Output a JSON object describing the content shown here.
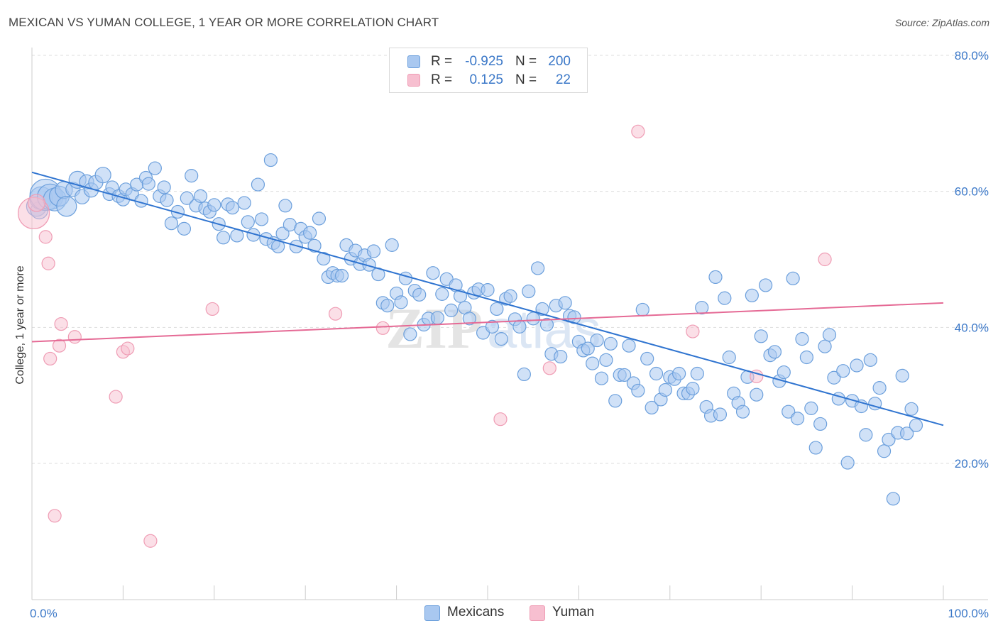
{
  "header": {
    "title": "MEXICAN VS YUMAN COLLEGE, 1 YEAR OR MORE CORRELATION CHART",
    "source": "Source: ZipAtlas.com"
  },
  "watermark": "ZIPatlas",
  "legend": {
    "rows": [
      {
        "r_label": "R =",
        "r_value": "-0.925",
        "n_label": "N =",
        "n_value": "200"
      },
      {
        "r_label": "R =",
        "r_value": "0.125",
        "n_label": "N =",
        "n_value": "22"
      }
    ]
  },
  "bottom_legend": {
    "items": [
      {
        "label": "Mexicans"
      },
      {
        "label": "Yuman"
      }
    ]
  },
  "colors": {
    "blue_fill": "#a9c8f0",
    "blue_stroke": "#6b9fdc",
    "blue_line": "#2f74d0",
    "pink_fill": "#f7bfd0",
    "pink_stroke": "#ef9cb4",
    "pink_line": "#e56a95",
    "tick_text": "#3b78c8",
    "grid": "#dddddd"
  },
  "chart_data": {
    "type": "scatter",
    "title": "MEXICAN VS YUMAN COLLEGE, 1 YEAR OR MORE CORRELATION CHART",
    "xlabel": "",
    "ylabel": "College, 1 year or more",
    "xlim": [
      0,
      100
    ],
    "ylim": [
      0,
      82
    ],
    "x_ticks": [
      "0.0%",
      "100.0%"
    ],
    "y_ticks": [
      {
        "value": 20,
        "label": "20.0%"
      },
      {
        "value": 40,
        "label": "40.0%"
      },
      {
        "value": 60,
        "label": "60.0%"
      },
      {
        "value": 80,
        "label": "80.0%"
      }
    ],
    "grid": "horizontal dashed",
    "legend_position": "top-center",
    "series": [
      {
        "name": "Mexicans",
        "r": -0.925,
        "n": 200,
        "trend": {
          "x0": 0,
          "y0": 62.8,
          "x1": 100,
          "y1": 25.6
        },
        "points": [
          [
            0.5,
            57.8,
            14
          ],
          [
            0.8,
            57.2,
            12
          ],
          [
            1,
            59,
            16
          ],
          [
            1.5,
            59.5,
            22
          ],
          [
            2,
            59.2,
            18
          ],
          [
            2.5,
            58.8,
            16
          ],
          [
            3,
            59.3,
            14
          ],
          [
            3.5,
            60.2,
            12
          ],
          [
            3.8,
            57.8,
            14
          ],
          [
            4.5,
            60.3,
            10
          ],
          [
            5,
            61.7,
            12
          ],
          [
            5.5,
            59.2,
            10
          ],
          [
            6,
            61.4,
            10
          ],
          [
            6.5,
            60.2,
            10
          ],
          [
            7,
            61.3,
            10
          ],
          [
            7.8,
            62.4,
            11
          ],
          [
            8.5,
            59.6,
            9
          ],
          [
            8.8,
            60.6,
            9
          ],
          [
            9.5,
            59.3,
            9
          ],
          [
            10,
            58.8,
            9
          ],
          [
            10.3,
            60.3,
            9
          ],
          [
            11,
            59.6,
            9
          ],
          [
            11.5,
            61,
            9
          ],
          [
            12,
            58.6,
            9
          ],
          [
            12.5,
            62,
            9
          ],
          [
            12.8,
            61.1,
            9
          ],
          [
            13.5,
            63.4,
            9
          ],
          [
            14,
            59.3,
            9
          ],
          [
            14.5,
            60.6,
            9
          ],
          [
            14.8,
            58.7,
            9
          ],
          [
            15.3,
            55.3,
            9
          ],
          [
            16,
            57,
            9
          ],
          [
            16.7,
            54.5,
            9
          ],
          [
            17,
            59,
            9
          ],
          [
            17.5,
            62.3,
            9
          ],
          [
            18,
            57.9,
            9
          ],
          [
            18.5,
            59.3,
            9
          ],
          [
            19,
            57.5,
            9
          ],
          [
            19.5,
            57,
            9
          ],
          [
            20,
            58,
            9
          ],
          [
            20.5,
            55.2,
            9
          ],
          [
            21,
            53.2,
            9
          ],
          [
            21.5,
            58.1,
            9
          ],
          [
            22,
            57.6,
            9
          ],
          [
            22.5,
            53.5,
            9
          ],
          [
            23.3,
            58.3,
            9
          ],
          [
            23.7,
            55.5,
            9
          ],
          [
            24.3,
            53.6,
            9
          ],
          [
            24.8,
            61,
            9
          ],
          [
            25.2,
            55.9,
            9
          ],
          [
            25.7,
            53,
            9
          ],
          [
            26.2,
            64.6,
            9
          ],
          [
            26.5,
            52.4,
            9
          ],
          [
            27,
            51.9,
            9
          ],
          [
            27.5,
            53.8,
            9
          ],
          [
            27.8,
            57.9,
            9
          ],
          [
            28.3,
            55.1,
            9
          ],
          [
            29,
            51.9,
            9
          ],
          [
            29.5,
            54.5,
            9
          ],
          [
            30,
            53.3,
            9
          ],
          [
            30.5,
            53.9,
            9
          ],
          [
            31,
            52,
            9
          ],
          [
            31.5,
            56,
            9
          ],
          [
            32,
            50.1,
            9
          ],
          [
            32.5,
            47.4,
            9
          ],
          [
            33,
            48,
            9
          ],
          [
            33.5,
            47.6,
            9
          ],
          [
            34,
            47.6,
            9
          ],
          [
            34.5,
            52.1,
            9
          ],
          [
            35,
            50.1,
            9
          ],
          [
            35.5,
            51.3,
            9
          ],
          [
            36,
            49.3,
            9
          ],
          [
            36.5,
            50.6,
            9
          ],
          [
            37,
            49.2,
            9
          ],
          [
            37.5,
            51.2,
            9
          ],
          [
            38,
            47.8,
            9
          ],
          [
            38.5,
            43.6,
            9
          ],
          [
            39,
            43.2,
            9
          ],
          [
            39.5,
            52.1,
            9
          ],
          [
            40,
            45,
            9
          ],
          [
            40.5,
            43.7,
            9
          ],
          [
            41,
            47.2,
            9
          ],
          [
            41.5,
            39,
            9
          ],
          [
            42,
            45.4,
            9
          ],
          [
            42.5,
            44.8,
            9
          ],
          [
            43,
            40.4,
            9
          ],
          [
            43.5,
            41.3,
            9
          ],
          [
            44,
            48,
            9
          ],
          [
            44.5,
            41.4,
            9
          ],
          [
            45,
            44.9,
            9
          ],
          [
            45.5,
            47.1,
            9
          ],
          [
            46,
            42.5,
            9
          ],
          [
            46.5,
            46.2,
            9
          ],
          [
            47,
            44.6,
            9
          ],
          [
            47.5,
            42.9,
            9
          ],
          [
            48,
            41.3,
            9
          ],
          [
            48.5,
            45.1,
            9
          ],
          [
            49,
            45.6,
            9
          ],
          [
            49.5,
            39.2,
            9
          ],
          [
            50,
            45.5,
            9
          ],
          [
            50.5,
            40.1,
            9
          ],
          [
            51,
            42.7,
            9
          ],
          [
            51.5,
            38.3,
            9
          ],
          [
            52,
            44.2,
            9
          ],
          [
            52.5,
            44.6,
            9
          ],
          [
            53,
            41.2,
            9
          ],
          [
            53.5,
            40.1,
            9
          ],
          [
            54,
            33.1,
            9
          ],
          [
            54.5,
            45.3,
            9
          ],
          [
            55,
            41.3,
            9
          ],
          [
            55.5,
            48.7,
            9
          ],
          [
            56,
            42.7,
            9
          ],
          [
            56.5,
            40.4,
            9
          ],
          [
            57,
            36.1,
            9
          ],
          [
            57.5,
            43.2,
            9
          ],
          [
            58,
            35.7,
            9
          ],
          [
            58.5,
            43.6,
            9
          ],
          [
            59,
            41.7,
            9
          ],
          [
            59.5,
            41.5,
            9
          ],
          [
            60,
            37.9,
            9
          ],
          [
            60.5,
            36.6,
            9
          ],
          [
            61,
            36.9,
            9
          ],
          [
            61.5,
            34.7,
            9
          ],
          [
            62,
            38.1,
            9
          ],
          [
            62.5,
            32.5,
            9
          ],
          [
            63,
            35.2,
            9
          ],
          [
            63.5,
            37.6,
            9
          ],
          [
            64,
            29.2,
            9
          ],
          [
            64.5,
            33,
            9
          ],
          [
            65,
            33,
            9
          ],
          [
            65.5,
            37.3,
            9
          ],
          [
            66,
            31.8,
            9
          ],
          [
            66.5,
            30.7,
            9
          ],
          [
            67,
            42.6,
            9
          ],
          [
            67.5,
            35.4,
            9
          ],
          [
            68,
            28.2,
            9
          ],
          [
            68.5,
            33.2,
            9
          ],
          [
            69,
            29.4,
            9
          ],
          [
            69.5,
            30.8,
            9
          ],
          [
            70,
            32.7,
            9
          ],
          [
            70.5,
            32.4,
            9
          ],
          [
            71,
            33.2,
            9
          ],
          [
            71.5,
            30.3,
            9
          ],
          [
            72,
            30.3,
            9
          ],
          [
            72.5,
            31,
            9
          ],
          [
            73,
            33.2,
            9
          ],
          [
            73.5,
            42.9,
            9
          ],
          [
            74,
            28.3,
            9
          ],
          [
            74.5,
            27,
            9
          ],
          [
            75,
            47.4,
            9
          ],
          [
            75.5,
            27.2,
            9
          ],
          [
            76,
            44.3,
            9
          ],
          [
            76.5,
            35.6,
            9
          ],
          [
            77,
            30.3,
            9
          ],
          [
            77.5,
            28.9,
            9
          ],
          [
            78,
            27.6,
            9
          ],
          [
            78.5,
            32.7,
            9
          ],
          [
            79,
            44.7,
            9
          ],
          [
            79.5,
            30.1,
            9
          ],
          [
            80,
            38.7,
            9
          ],
          [
            80.5,
            46.2,
            9
          ],
          [
            81,
            35.9,
            9
          ],
          [
            81.5,
            36.4,
            9
          ],
          [
            82,
            32.1,
            9
          ],
          [
            82.5,
            33.4,
            9
          ],
          [
            83,
            27.6,
            9
          ],
          [
            83.5,
            47.2,
            9
          ],
          [
            84,
            26.6,
            9
          ],
          [
            84.5,
            38.3,
            9
          ],
          [
            85,
            35.6,
            9
          ],
          [
            85.5,
            28.1,
            9
          ],
          [
            86,
            22.3,
            9
          ],
          [
            86.5,
            25.8,
            9
          ],
          [
            87,
            37.2,
            9
          ],
          [
            87.5,
            38.9,
            9
          ],
          [
            88,
            32.6,
            9
          ],
          [
            88.5,
            29.5,
            9
          ],
          [
            89,
            33.6,
            9
          ],
          [
            89.5,
            20.1,
            9
          ],
          [
            90,
            29.2,
            9
          ],
          [
            90.5,
            34.4,
            9
          ],
          [
            91,
            28.4,
            9
          ],
          [
            91.5,
            24.2,
            9
          ],
          [
            92,
            35.2,
            9
          ],
          [
            92.5,
            28.8,
            9
          ],
          [
            93,
            31.1,
            9
          ],
          [
            93.5,
            21.8,
            9
          ],
          [
            94,
            23.5,
            9
          ],
          [
            94.5,
            14.8,
            9
          ],
          [
            95,
            24.5,
            9
          ],
          [
            95.5,
            32.9,
            9
          ],
          [
            96,
            24.4,
            9
          ],
          [
            96.5,
            28,
            9
          ],
          [
            97,
            25.6,
            9
          ]
        ]
      },
      {
        "name": "Yuman",
        "r": 0.125,
        "n": 22,
        "trend": {
          "x0": 0,
          "y0": 37.9,
          "x1": 100,
          "y1": 43.6
        },
        "points": [
          [
            0.2,
            56.8,
            22
          ],
          [
            0.5,
            58.3,
            12
          ],
          [
            1.5,
            53.3,
            9
          ],
          [
            1.8,
            49.4,
            9
          ],
          [
            2,
            35.4,
            9
          ],
          [
            3,
            37.3,
            9
          ],
          [
            3.2,
            40.5,
            9
          ],
          [
            4.7,
            38.6,
            9
          ],
          [
            9.2,
            29.8,
            9
          ],
          [
            10,
            36.4,
            9
          ],
          [
            10.5,
            36.9,
            9
          ],
          [
            2.5,
            12.3,
            9
          ],
          [
            13,
            8.6,
            9
          ],
          [
            19.8,
            42.7,
            9
          ],
          [
            33.3,
            42,
            9
          ],
          [
            38.5,
            39.9,
            9
          ],
          [
            51.4,
            26.5,
            9
          ],
          [
            56.8,
            34,
            9
          ],
          [
            66.5,
            68.8,
            9
          ],
          [
            72.5,
            39.4,
            9
          ],
          [
            79.5,
            32.8,
            9
          ],
          [
            87,
            50,
            9
          ]
        ]
      }
    ]
  }
}
